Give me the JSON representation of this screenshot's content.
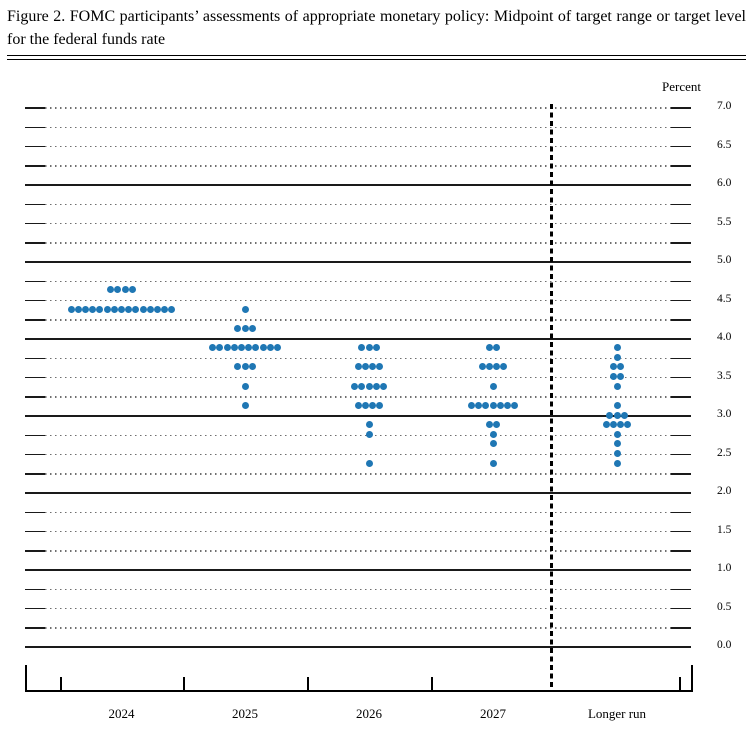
{
  "title": {
    "text": "Figure 2.  FOMC participants’ assessments of appropriate monetary policy:  Midpoint of target range or target level for the federal funds rate"
  },
  "chart_data": {
    "type": "scatter",
    "subtype": "fomc-dot-plot",
    "title": "Figure 2. FOMC participants’ assessments of appropriate monetary policy: Midpoint of target range or target level for the federal funds rate",
    "ylabel": "Percent",
    "ylim": [
      0.0,
      7.0
    ],
    "grid_interval": 0.25,
    "grid_style": {
      "integer_lines": "solid",
      "quarter_lines": "dotted-with-solid-end-caps"
    },
    "ytick_label_interval": 0.5,
    "ytick_labels": [
      "7.0",
      "6.5",
      "6.0",
      "5.5",
      "5.0",
      "4.5",
      "4.0",
      "3.5",
      "3.0",
      "2.5",
      "2.0",
      "1.5",
      "1.0",
      "0.5",
      "0.0"
    ],
    "categories": [
      "2024",
      "2025",
      "2026",
      "2027",
      "Longer run"
    ],
    "separator": {
      "style": "dashed-vertical-line",
      "position": "before Longer run"
    },
    "dot_color": "#1f77b4",
    "participants_per_column": 19,
    "series": [
      {
        "name": "2024",
        "dots": [
          {
            "rate": 4.625,
            "count": 4
          },
          {
            "rate": 4.375,
            "count": 15
          }
        ]
      },
      {
        "name": "2025",
        "dots": [
          {
            "rate": 4.375,
            "count": 1
          },
          {
            "rate": 4.125,
            "count": 3
          },
          {
            "rate": 3.875,
            "count": 10
          },
          {
            "rate": 3.625,
            "count": 3
          },
          {
            "rate": 3.375,
            "count": 1
          },
          {
            "rate": 3.125,
            "count": 1
          }
        ]
      },
      {
        "name": "2026",
        "dots": [
          {
            "rate": 3.875,
            "count": 3
          },
          {
            "rate": 3.625,
            "count": 4
          },
          {
            "rate": 3.375,
            "count": 5
          },
          {
            "rate": 3.125,
            "count": 4
          },
          {
            "rate": 2.875,
            "count": 1
          },
          {
            "rate": 2.75,
            "count": 1
          },
          {
            "rate": 2.375,
            "count": 1
          }
        ]
      },
      {
        "name": "2027",
        "dots": [
          {
            "rate": 3.875,
            "count": 2
          },
          {
            "rate": 3.625,
            "count": 4
          },
          {
            "rate": 3.375,
            "count": 1
          },
          {
            "rate": 3.125,
            "count": 7
          },
          {
            "rate": 2.875,
            "count": 2
          },
          {
            "rate": 2.75,
            "count": 1
          },
          {
            "rate": 2.625,
            "count": 1
          },
          {
            "rate": 2.375,
            "count": 1
          }
        ]
      },
      {
        "name": "Longer run",
        "dots": [
          {
            "rate": 3.875,
            "count": 1
          },
          {
            "rate": 3.75,
            "count": 1
          },
          {
            "rate": 3.625,
            "count": 2
          },
          {
            "rate": 3.5,
            "count": 2
          },
          {
            "rate": 3.375,
            "count": 1
          },
          {
            "rate": 3.125,
            "count": 1
          },
          {
            "rate": 3.0,
            "count": 3
          },
          {
            "rate": 2.875,
            "count": 4
          },
          {
            "rate": 2.75,
            "count": 1
          },
          {
            "rate": 2.625,
            "count": 1
          },
          {
            "rate": 2.5,
            "count": 1
          },
          {
            "rate": 2.375,
            "count": 1
          }
        ]
      }
    ]
  }
}
